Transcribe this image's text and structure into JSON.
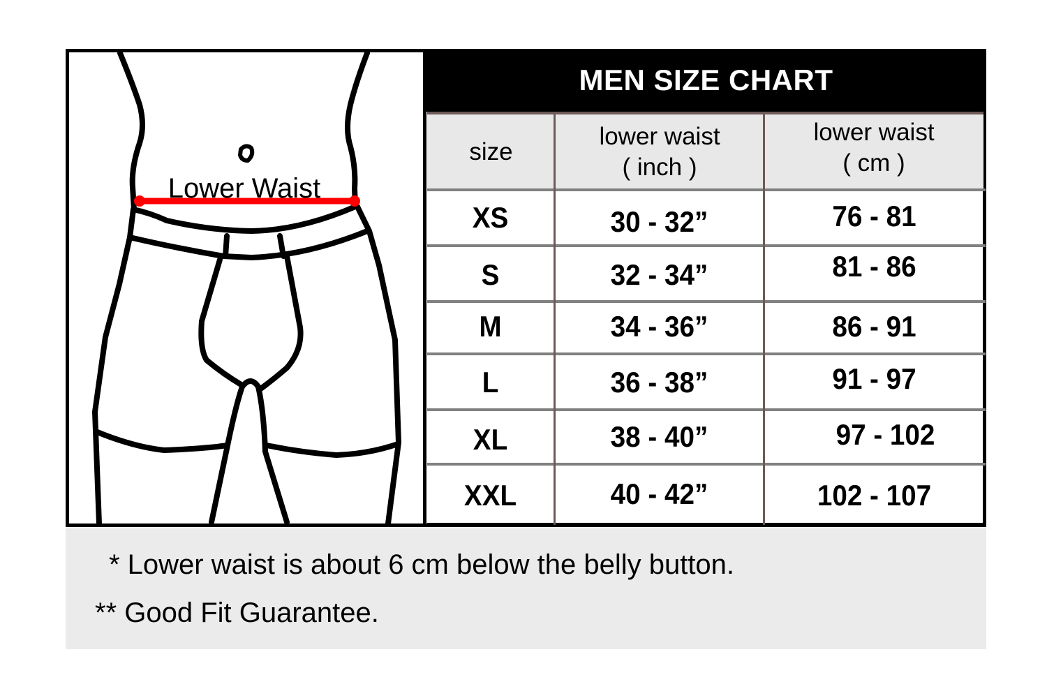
{
  "illustration": {
    "measure_label": "Lower Waist",
    "measure_line_color": "#ff0000"
  },
  "chart": {
    "title": "MEN SIZE CHART",
    "headers": [
      {
        "line1": "size",
        "line2": ""
      },
      {
        "line1": "lower waist",
        "line2": "( inch )"
      },
      {
        "line1": "lower waist",
        "line2": "( cm )"
      }
    ],
    "rows": [
      {
        "size": "XS",
        "inch": "30 - 32”",
        "cm": "76 - 81"
      },
      {
        "size": "S",
        "inch": "32 - 34”",
        "cm": "81 - 86"
      },
      {
        "size": "M",
        "inch": "34 - 36”",
        "cm": "86 - 91"
      },
      {
        "size": "L",
        "inch": "36 - 38”",
        "cm": "91 - 97"
      },
      {
        "size": "XL",
        "inch": "38 - 40”",
        "cm": "97 - 102"
      },
      {
        "size": "XXL",
        "inch": "40 - 42”",
        "cm": "102 - 107"
      }
    ]
  },
  "notes": [
    "* Lower waist is about 6 cm below the belly button.",
    "** Good Fit Guarantee."
  ]
}
